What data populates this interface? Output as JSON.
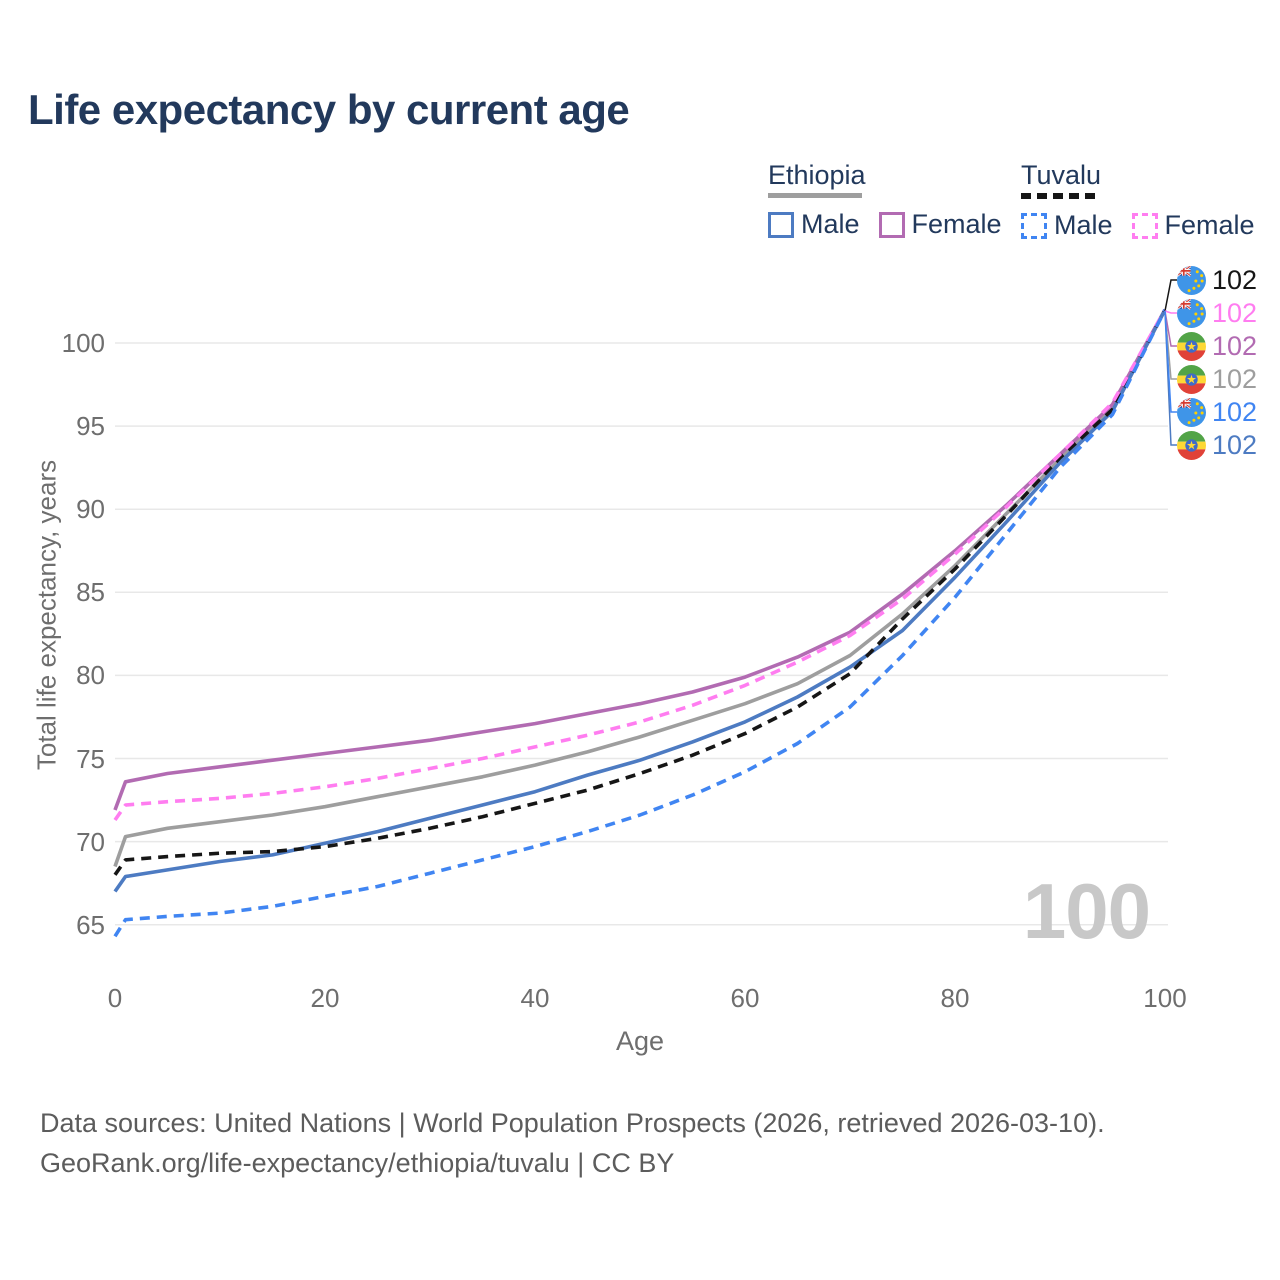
{
  "title": "Life expectancy by current age",
  "legend": {
    "groups": [
      {
        "label": "Ethiopia",
        "underline_style": "solid",
        "underline_color": "#9e9e9e",
        "items": [
          {
            "label": "Male",
            "color": "#4d7bc2",
            "dash": false
          },
          {
            "label": "Female",
            "color": "#b26bb2",
            "dash": false
          }
        ]
      },
      {
        "label": "Tuvalu",
        "underline_style": "dashed",
        "underline_color": "#161616",
        "items": [
          {
            "label": "Male",
            "color": "#4085f2",
            "dash": true
          },
          {
            "label": "Female",
            "color": "#ff7df0",
            "dash": true
          }
        ]
      }
    ]
  },
  "chart_data": {
    "type": "line",
    "title": "Life expectancy by current age",
    "xlabel": "Age",
    "ylabel": "Total life expectancy, years",
    "xlim": [
      0,
      100
    ],
    "ylim": [
      63,
      103
    ],
    "xticks": [
      0,
      20,
      40,
      60,
      80,
      100
    ],
    "yticks": [
      65,
      70,
      75,
      80,
      85,
      90,
      95,
      100
    ],
    "grid": "horizontal-only",
    "legend_position": "top-right",
    "x": [
      0,
      1,
      5,
      10,
      15,
      20,
      25,
      30,
      35,
      40,
      45,
      50,
      55,
      60,
      65,
      70,
      75,
      80,
      85,
      90,
      95,
      100
    ],
    "series": [
      {
        "country": "Ethiopia",
        "sex": "Both",
        "color": "#9e9e9e",
        "style": "solid",
        "flag": "ethiopia",
        "end_label": "102",
        "label_row": 3,
        "values": [
          68.5,
          70.3,
          70.8,
          71.2,
          71.6,
          72.1,
          72.7,
          73.3,
          73.9,
          74.6,
          75.4,
          76.3,
          77.3,
          78.3,
          79.5,
          81.2,
          83.7,
          86.6,
          89.8,
          93.0,
          96.1,
          102
        ]
      },
      {
        "country": "Ethiopia",
        "sex": "Female",
        "color": "#b26bb2",
        "style": "solid",
        "flag": "ethiopia",
        "end_label": "102",
        "label_row": 2,
        "values": [
          71.9,
          73.6,
          74.1,
          74.5,
          74.9,
          75.3,
          75.7,
          76.1,
          76.6,
          77.1,
          77.7,
          78.3,
          79.0,
          79.9,
          81.1,
          82.6,
          84.9,
          87.5,
          90.3,
          93.3,
          96.3,
          102
        ]
      },
      {
        "country": "Ethiopia",
        "sex": "Male",
        "color": "#4d7bc2",
        "style": "solid",
        "flag": "ethiopia",
        "end_label": "102",
        "label_row": 5,
        "values": [
          67.0,
          67.9,
          68.3,
          68.8,
          69.2,
          69.9,
          70.6,
          71.4,
          72.2,
          73.0,
          74.0,
          74.9,
          76.0,
          77.2,
          78.7,
          80.5,
          82.7,
          85.9,
          89.3,
          92.8,
          95.9,
          102
        ]
      },
      {
        "country": "Tuvalu",
        "sex": "Both",
        "color": "#161616",
        "style": "dashed",
        "flag": "tuvalu",
        "end_label": "102",
        "label_row": 0,
        "values": [
          68.0,
          68.9,
          69.1,
          69.3,
          69.4,
          69.7,
          70.2,
          70.8,
          71.5,
          72.3,
          73.1,
          74.1,
          75.2,
          76.5,
          78.1,
          80.1,
          83.4,
          86.4,
          89.7,
          93.1,
          96.0,
          102
        ]
      },
      {
        "country": "Tuvalu",
        "sex": "Female",
        "color": "#ff7df0",
        "style": "dashed",
        "flag": "tuvalu",
        "end_label": "102",
        "label_row": 1,
        "values": [
          71.3,
          72.2,
          72.4,
          72.6,
          72.9,
          73.3,
          73.8,
          74.4,
          75.0,
          75.7,
          76.4,
          77.2,
          78.2,
          79.4,
          80.8,
          82.4,
          84.6,
          87.3,
          90.2,
          93.3,
          96.4,
          102
        ]
      },
      {
        "country": "Tuvalu",
        "sex": "Male",
        "color": "#4085f2",
        "style": "dashed",
        "flag": "tuvalu",
        "end_label": "102",
        "label_row": 4,
        "values": [
          64.3,
          65.3,
          65.5,
          65.7,
          66.1,
          66.7,
          67.3,
          68.1,
          68.9,
          69.7,
          70.6,
          71.6,
          72.8,
          74.2,
          75.9,
          78.1,
          81.2,
          84.7,
          88.6,
          92.5,
          95.7,
          102
        ]
      }
    ]
  },
  "watermark": "100",
  "footer": {
    "line1": "Data sources: United Nations | World Population Prospects (2026, retrieved 2026-03-10).",
    "line2": "GeoRank.org/life-expectancy/ethiopia/tuvalu | CC BY"
  }
}
